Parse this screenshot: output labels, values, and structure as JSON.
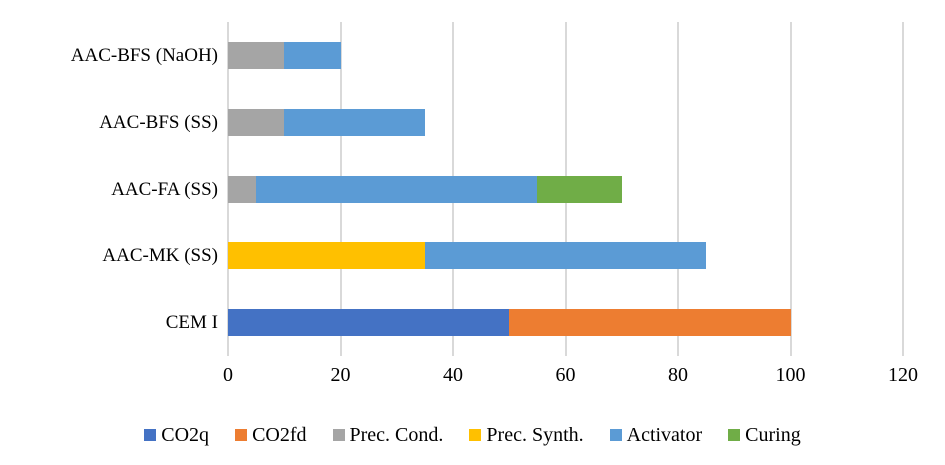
{
  "chart_data": {
    "type": "bar",
    "orientation": "horizontal",
    "stacked": true,
    "title": "",
    "xlabel": "",
    "ylabel": "",
    "xlim": [
      0,
      120
    ],
    "xticks": [
      0,
      20,
      40,
      60,
      80,
      100,
      120
    ],
    "grid": true,
    "legend_position": "bottom",
    "categories": [
      "AAC-BFS (NaOH)",
      "AAC-BFS (SS)",
      "AAC-FA (SS)",
      "AAC-MK (SS)",
      "CEM I"
    ],
    "series": [
      {
        "name": "CO2q",
        "color": "#4472C4",
        "values": [
          0,
          0,
          0,
          0,
          50
        ]
      },
      {
        "name": "CO2fd",
        "color": "#ED7D31",
        "values": [
          0,
          0,
          0,
          0,
          50
        ]
      },
      {
        "name": "Prec. Cond.",
        "color": "#A5A5A5",
        "values": [
          10,
          10,
          5,
          0,
          0
        ]
      },
      {
        "name": "Prec. Synth.",
        "color": "#FFC000",
        "values": [
          0,
          0,
          0,
          35,
          0
        ]
      },
      {
        "name": "Activator",
        "color": "#5B9BD5",
        "values": [
          10,
          25,
          50,
          50,
          0
        ]
      },
      {
        "name": "Curing",
        "color": "#70AD47",
        "values": [
          0,
          0,
          15,
          0,
          0
        ]
      }
    ],
    "totals": [
      20,
      35,
      70,
      85,
      100
    ],
    "gridline_color": "#d9d9d9",
    "background_color": "#ffffff"
  }
}
